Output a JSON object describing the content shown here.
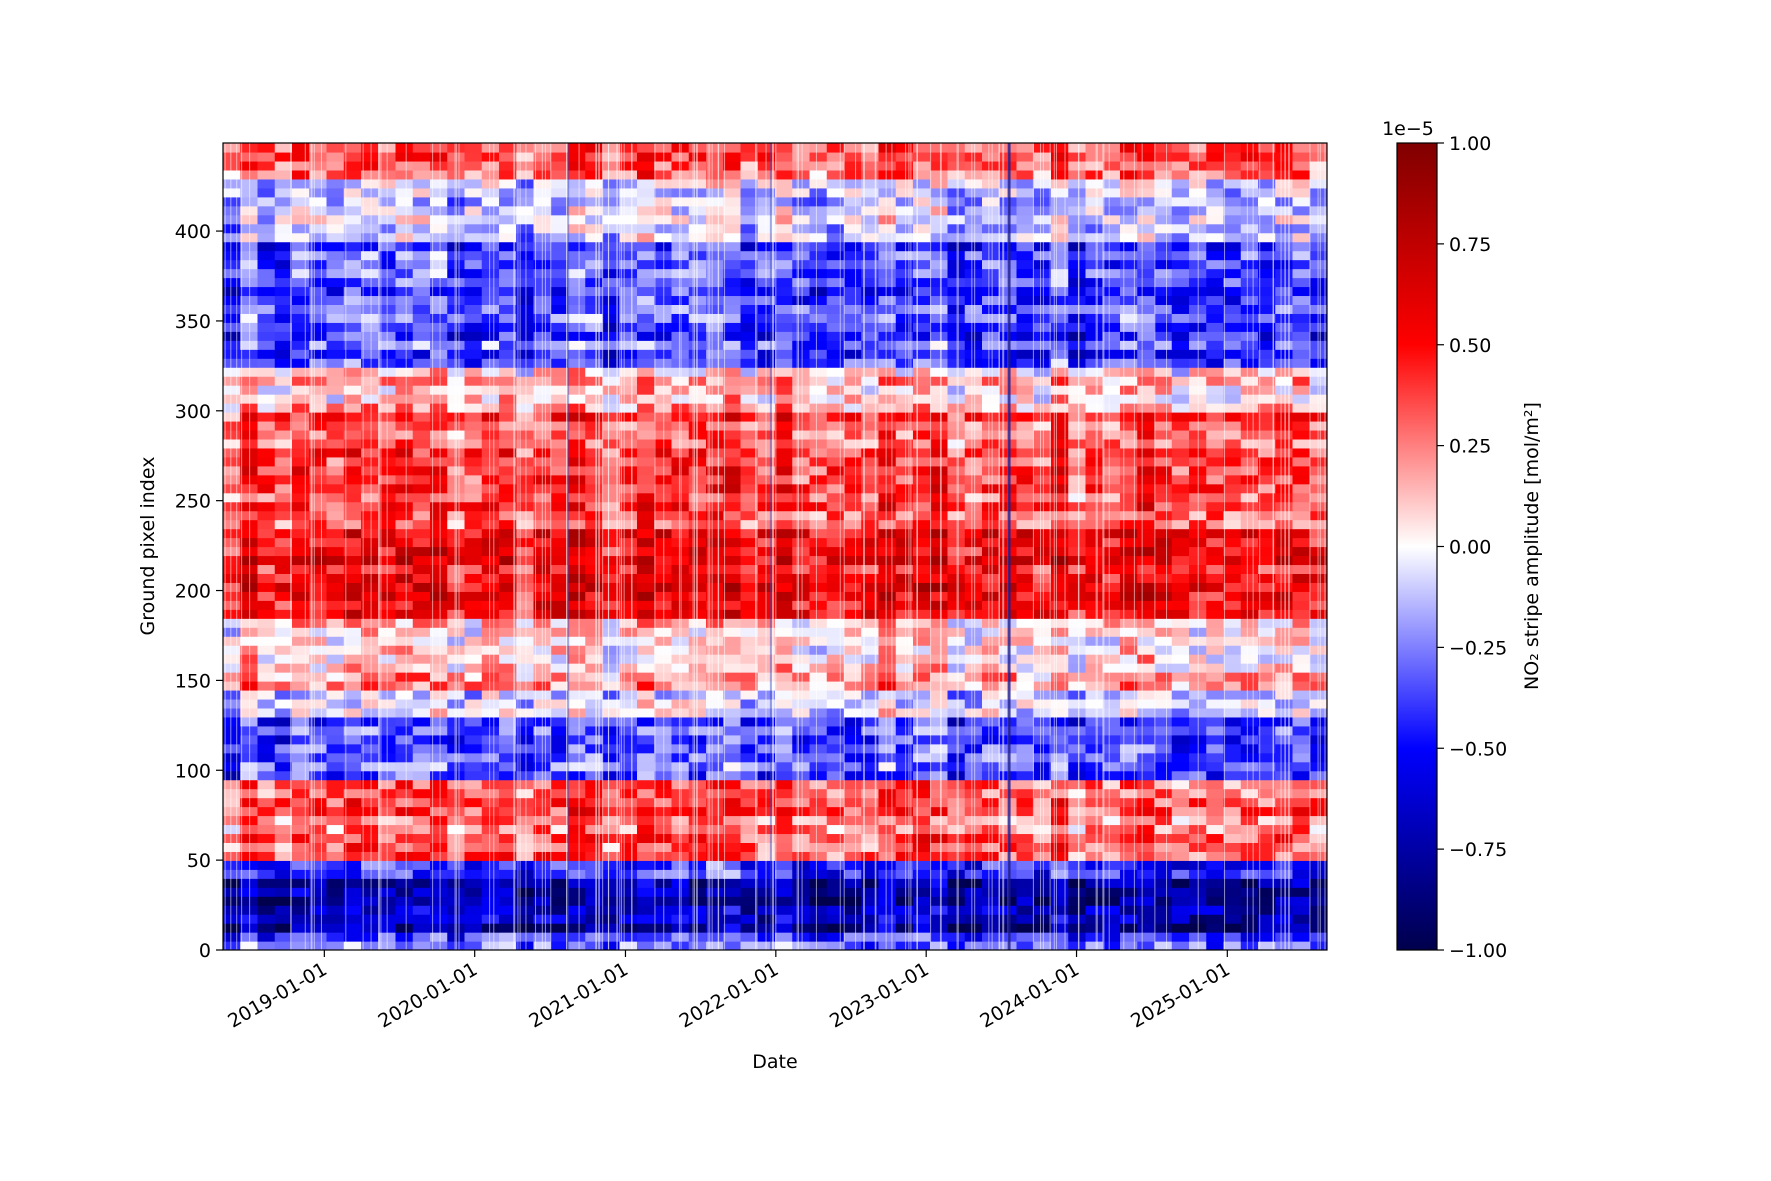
{
  "chart_data": {
    "type": "heatmap",
    "title": "",
    "xlabel": "Date",
    "ylabel": "Ground pixel index",
    "x_range": [
      "2018-04-30",
      "2025-08-31"
    ],
    "ylim": [
      0,
      449
    ],
    "x_ticks": [
      "2019-01-01",
      "2020-01-01",
      "2021-01-01",
      "2022-01-01",
      "2023-01-01",
      "2024-01-01",
      "2025-01-01"
    ],
    "y_ticks": [
      0,
      50,
      100,
      150,
      200,
      250,
      300,
      350,
      400
    ],
    "colormap": "seismic",
    "colorbar": {
      "label": "NO₂ stripe amplitude [mol/m²]",
      "offset_text": "1e−5",
      "vmin": -1.0,
      "vmax": 1.0,
      "ticks": [
        -1.0,
        -0.75,
        -0.5,
        -0.25,
        0.0,
        0.25,
        0.5,
        0.75,
        1.0
      ],
      "tick_labels": [
        "−1.00",
        "−0.75",
        "−0.50",
        "−0.25",
        "0.00",
        "0.25",
        "0.50",
        "0.75",
        "1.00"
      ]
    },
    "row_bands": [
      {
        "from": 0,
        "to": 12,
        "value": -0.35
      },
      {
        "from": 12,
        "to": 42,
        "value": -0.75
      },
      {
        "from": 42,
        "to": 48,
        "value": -0.45
      },
      {
        "from": 48,
        "to": 95,
        "value": 0.3
      },
      {
        "from": 95,
        "to": 130,
        "value": -0.35
      },
      {
        "from": 130,
        "to": 145,
        "value": -0.05
      },
      {
        "from": 145,
        "to": 165,
        "value": 0.15
      },
      {
        "from": 165,
        "to": 185,
        "value": 0.05
      },
      {
        "from": 185,
        "to": 235,
        "value": 0.55
      },
      {
        "from": 235,
        "to": 300,
        "value": 0.35
      },
      {
        "from": 300,
        "to": 325,
        "value": 0.1
      },
      {
        "from": 325,
        "to": 395,
        "value": -0.38
      },
      {
        "from": 395,
        "to": 428,
        "value": -0.12
      },
      {
        "from": 428,
        "to": 449,
        "value": 0.3
      }
    ],
    "anomaly_dates": [
      "2023-07-20",
      "2020-08-15",
      "2021-12-20"
    ]
  },
  "colors": {
    "axis": "#000000",
    "background": "#ffffff"
  }
}
